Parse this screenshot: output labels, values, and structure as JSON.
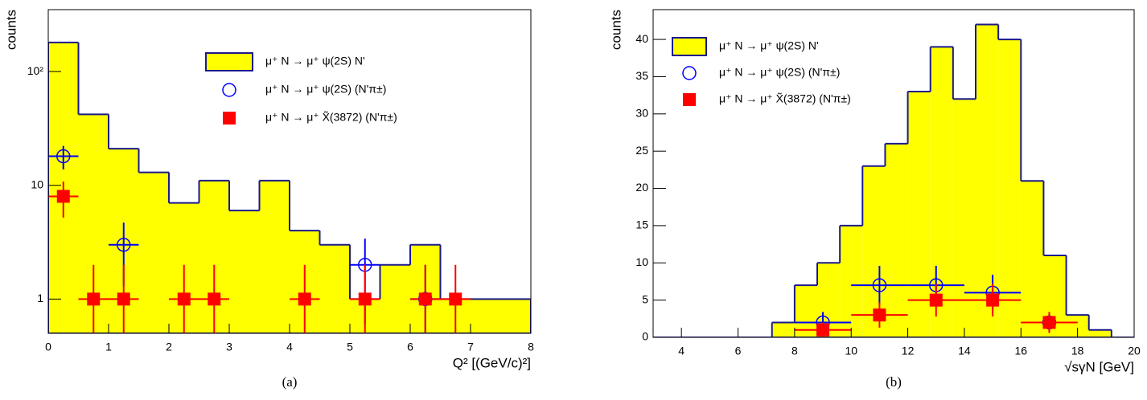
{
  "chart_data": [
    {
      "type": "histogram",
      "caption": "(a)",
      "y_label": "counts",
      "x_label": "Q² [(GeV/c)²]",
      "log_y": true,
      "xlim": [
        0,
        8
      ],
      "ylim": [
        0.5,
        350
      ],
      "xticks": [
        0,
        1,
        2,
        3,
        4,
        5,
        6,
        7,
        8
      ],
      "yticks": [
        1,
        10,
        {
          "value": 100,
          "label": "10²"
        }
      ],
      "name": "μ⁺ N → μ⁺ ψ(2S) N'",
      "color": "#ffff00",
      "edge_color": "#1a1a8c",
      "bins": [
        0,
        0.5,
        1,
        1.5,
        2,
        2.5,
        3,
        3.5,
        4,
        4.5,
        5,
        5.5,
        6,
        6.5,
        7,
        7.5,
        8
      ],
      "values": [
        180,
        42,
        21,
        13,
        7,
        11,
        6,
        11,
        4,
        3,
        1,
        2,
        3,
        1,
        1,
        1
      ],
      "series": [
        {
          "name": "μ⁺ N → μ⁺ ψ(2S) (N'π±)",
          "marker": "circle",
          "color": "#0000ff",
          "x": [
            0.25,
            1.25,
            5.25,
            6.25
          ],
          "x_errors": [
            0.25,
            0.25,
            0.25,
            0.25
          ],
          "values": [
            18,
            3,
            2,
            1
          ],
          "errors": [
            4.2,
            1.7,
            1.4,
            1
          ]
        },
        {
          "name": "μ⁺ N → μ⁺ X̃(3872) (N'π±)",
          "marker": "square",
          "color": "#ff0000",
          "x": [
            0.25,
            0.75,
            1.25,
            2.25,
            2.75,
            4.25,
            5.25,
            6.25,
            6.75
          ],
          "x_errors": [
            0.25,
            0.25,
            0.25,
            0.25,
            0.25,
            0.25,
            0.25,
            0.25,
            0.25
          ],
          "values": [
            8,
            1,
            1,
            1,
            1,
            1,
            1,
            1,
            1
          ],
          "errors": [
            2.8,
            1,
            1,
            1,
            1,
            1,
            1,
            1,
            1
          ]
        }
      ]
    },
    {
      "type": "histogram",
      "caption": "(b)",
      "y_label": "counts",
      "x_label": "√sγN [GeV]",
      "log_y": false,
      "xlim": [
        3,
        20
      ],
      "ylim": [
        0,
        44
      ],
      "xticks": [
        4,
        6,
        8,
        10,
        12,
        14,
        16,
        18,
        20
      ],
      "yticks": [
        0,
        5,
        10,
        15,
        20,
        25,
        30,
        35,
        40
      ],
      "name": "μ⁺ N → μ⁺ ψ(2S) N'",
      "color": "#ffff00",
      "edge_color": "#1a1a8c",
      "bins": [
        7.2,
        8.0,
        8.8,
        9.6,
        10.4,
        11.2,
        12.0,
        12.8,
        13.6,
        14.4,
        15.2,
        16.0,
        16.8,
        17.6,
        18.4,
        19.2
      ],
      "values": [
        2,
        7,
        10,
        15,
        23,
        26,
        33,
        39,
        32,
        42,
        40,
        21,
        11,
        3,
        1
      ],
      "series": [
        {
          "name": "μ⁺ N → μ⁺ ψ(2S) (N'π±)",
          "marker": "circle",
          "color": "#0000ff",
          "x": [
            9,
            11,
            13,
            15,
            17
          ],
          "x_errors": [
            1,
            1,
            1,
            1,
            1
          ],
          "values": [
            2,
            7,
            7,
            6,
            2
          ],
          "errors": [
            1.4,
            2.6,
            2.6,
            2.4,
            1.4
          ]
        },
        {
          "name": "μ⁺ N → μ⁺ X̃(3872) (N'π±)",
          "marker": "square",
          "color": "#ff0000",
          "x": [
            9,
            11,
            13,
            15,
            17
          ],
          "x_errors": [
            1,
            1,
            1,
            1,
            1
          ],
          "values": [
            1,
            3,
            5,
            5,
            2
          ],
          "errors": [
            1,
            1.7,
            2.2,
            2.2,
            1.4
          ]
        }
      ]
    }
  ]
}
